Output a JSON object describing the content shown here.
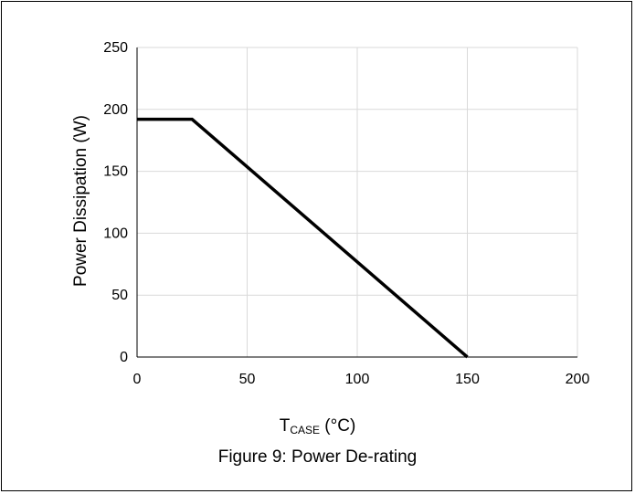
{
  "caption": "Figure 9: Power De-rating",
  "chart_data": {
    "type": "line",
    "ylabel": "Power Dissipation (W)",
    "xlabel_main": "T",
    "xlabel_sub": "CASE",
    "xlabel_unit": " (°C)",
    "xlim": [
      0,
      200
    ],
    "ylim": [
      0,
      250
    ],
    "xticks": [
      0,
      50,
      100,
      150,
      200
    ],
    "yticks": [
      0,
      50,
      100,
      150,
      200,
      250
    ],
    "grid": true,
    "series": [
      {
        "x": [
          0,
          25,
          150
        ],
        "y": [
          192,
          192,
          0
        ],
        "color": "#000000"
      }
    ]
  }
}
